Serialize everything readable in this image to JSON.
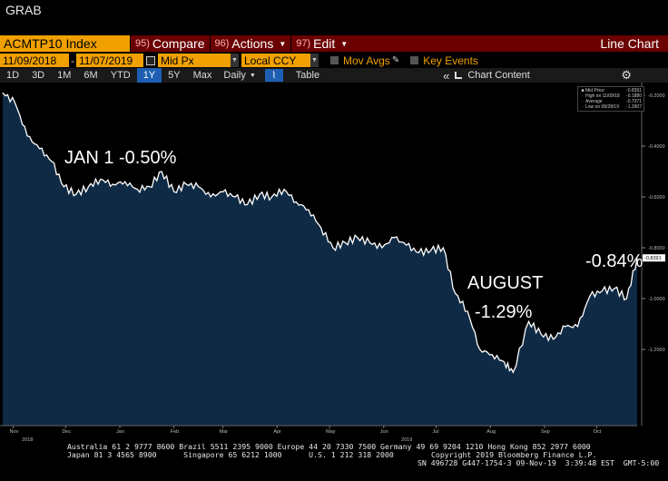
{
  "window": {
    "title": "GRAB"
  },
  "toolbar": {
    "ticker": "ACMTP10 Index",
    "compare": {
      "num": "95)",
      "label": "Compare"
    },
    "actions": {
      "num": "96)",
      "label": "Actions"
    },
    "edit": {
      "num": "97)",
      "label": "Edit"
    },
    "view_title": "Line Chart"
  },
  "settings": {
    "start_date": "11/09/2018",
    "separator": "-",
    "end_date": "11/07/2019",
    "field": "Mid Px",
    "currency": "Local CCY",
    "mov_avgs": "Mov Avgs",
    "key_events": "Key Events"
  },
  "periods": [
    "1D",
    "3D",
    "1M",
    "6M",
    "YTD",
    "1Y",
    "5Y",
    "Max"
  ],
  "selected_period": "1Y",
  "frequency": "Daily",
  "table_label": "Table",
  "collapse_icon": "double-chevron-left",
  "chart_content_label": "Chart Content",
  "legend": {
    "rows": [
      {
        "label": "Mid Price",
        "value": "-0.8391"
      },
      {
        "label": "High on 11/09/18",
        "value": "-0.1880"
      },
      {
        "label": "Average",
        "value": "-0.7371"
      },
      {
        "label": "Low on 08/28/19",
        "value": "-1.2907"
      }
    ]
  },
  "annotations": {
    "jan": "JAN 1 -0.50%",
    "august_l1": "AUGUST",
    "august_l2": "-1.29%",
    "last": "-0.84%"
  },
  "last_price_label": "-0.8391",
  "colors": {
    "area_fill": "#0f2a44",
    "line": "#ffffff",
    "ticker_bg": "#f0a000",
    "menu_bg": "#6b0000",
    "selected_bg": "#1e5fb4"
  },
  "footer": {
    "line1": "Australia 61 2 9777 8600 Brazil 5511 2395 9000 Europe 44 20 7330 7500 Germany 49 69 9204 1210 Hong Kong 852 2977 6000",
    "line2_left": "Japan 81 3 4565 8900      Singapore 65 6212 1000      U.S. 1 212 318 2000",
    "line2_right": "Copyright 2019 Bloomberg Finance L.P.",
    "line3": "SN 496728 G447-1754-3 09-Nov-19  3:39:48 EST  GMT-5:00"
  },
  "chart_data": {
    "type": "area",
    "y_ticks": [
      "-0.2000",
      "-0.4000",
      "-0.6000",
      "-0.8000",
      "-1.0000",
      "-1.2000"
    ],
    "ylim": [
      -1.5,
      -0.15
    ],
    "x_ticks": [
      "Nov",
      "Dec",
      "Jan",
      "Feb",
      "Mar",
      "Apr",
      "May",
      "Jun",
      "Jul",
      "Aug",
      "Sep",
      "Oct"
    ],
    "x_year_labels": [
      "2018",
      "2019"
    ],
    "series": [
      {
        "x": [
          "2018-11-09",
          "2018-11-16",
          "2018-11-23",
          "2018-11-30",
          "2018-12-07",
          "2018-12-14",
          "2018-12-21",
          "2018-12-28",
          "2019-01-04",
          "2019-01-11",
          "2019-01-18",
          "2019-01-25",
          "2019-02-01",
          "2019-02-08",
          "2019-02-15",
          "2019-02-22",
          "2019-03-01",
          "2019-03-08",
          "2019-03-15",
          "2019-03-22",
          "2019-03-29",
          "2019-04-05",
          "2019-04-12",
          "2019-04-19",
          "2019-04-26",
          "2019-05-03",
          "2019-05-10",
          "2019-05-17",
          "2019-05-24",
          "2019-05-31",
          "2019-06-07",
          "2019-06-14",
          "2019-06-21",
          "2019-06-28",
          "2019-07-05",
          "2019-07-12",
          "2019-07-19",
          "2019-07-26",
          "2019-08-02",
          "2019-08-09",
          "2019-08-16",
          "2019-08-23",
          "2019-08-28",
          "2019-09-06",
          "2019-09-13",
          "2019-09-20",
          "2019-09-27",
          "2019-10-04",
          "2019-10-11",
          "2019-10-18",
          "2019-10-25",
          "2019-11-01",
          "2019-11-07"
        ],
        "values": [
          -0.19,
          -0.23,
          -0.36,
          -0.41,
          -0.46,
          -0.56,
          -0.59,
          -0.56,
          -0.53,
          -0.55,
          -0.54,
          -0.57,
          -0.56,
          -0.5,
          -0.58,
          -0.55,
          -0.56,
          -0.6,
          -0.58,
          -0.6,
          -0.63,
          -0.59,
          -0.6,
          -0.57,
          -0.62,
          -0.65,
          -0.72,
          -0.8,
          -0.78,
          -0.76,
          -0.78,
          -0.8,
          -0.76,
          -0.79,
          -0.82,
          -0.81,
          -0.8,
          -0.98,
          -1.05,
          -1.2,
          -1.22,
          -1.25,
          -1.29,
          -1.09,
          -1.14,
          -1.16,
          -1.11,
          -1.11,
          -0.99,
          -0.97,
          -0.96,
          -1.0,
          -0.84
        ]
      }
    ]
  }
}
